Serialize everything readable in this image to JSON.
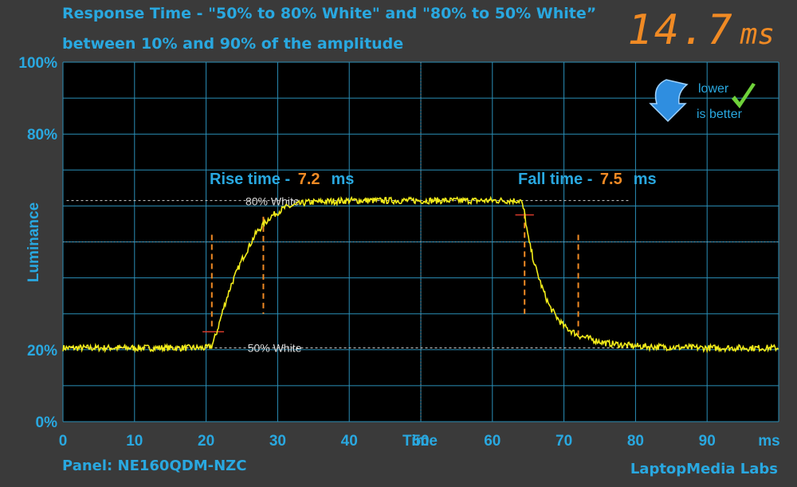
{
  "title_line1": "Response Time - \"50% to 80% White\" and \"80% to 50% White”",
  "title_line2": "between 10% and 90% of the amplitude",
  "readout": {
    "value": "14.7",
    "unit": "ms"
  },
  "badge": {
    "line1": "lower",
    "line2": "is better"
  },
  "panel_label": "Panel: NE160QDM-NZC",
  "brand": "LaptopMedia Labs",
  "chart_data": {
    "type": "line",
    "ylabel": "Luminance",
    "xlabel": "Time",
    "x_unit": "ms",
    "xlim": [
      0,
      100
    ],
    "ylim": [
      0,
      100
    ],
    "x_ticks": [
      0,
      10,
      20,
      30,
      40,
      50,
      60,
      70,
      80,
      90
    ],
    "y_tick_labels": [
      {
        "value": 100,
        "label": "100%"
      },
      {
        "value": 80,
        "label": "80%"
      },
      {
        "value": 20,
        "label": "20%"
      },
      {
        "value": 0,
        "label": "0%"
      }
    ],
    "grid": true,
    "reference_lines": [
      {
        "label": "80% White",
        "y": 61.5
      },
      {
        "label": "50% White",
        "y": 20.5
      }
    ],
    "rise": {
      "label": "Rise time - ",
      "value": "7.2",
      "unit": "ms",
      "start_ms": 20.8,
      "end_ms": 28.0
    },
    "fall": {
      "label": "Fall time - ",
      "value": "7.5",
      "unit": "ms",
      "start_ms": 64.5,
      "end_ms": 72.0
    },
    "series": [
      {
        "color": "#f2ec1a",
        "x": [
          0,
          20,
          20.8,
          21.5,
          22.5,
          23.5,
          25,
          27,
          29,
          31,
          34,
          40,
          50,
          60,
          64,
          64.5,
          65,
          66,
          67,
          68,
          69,
          70,
          72,
          74,
          76,
          80,
          85,
          90,
          100
        ],
        "y": [
          20.5,
          20.5,
          21,
          25,
          32,
          38,
          45,
          52.5,
          57,
          59.5,
          61,
          61.5,
          61.5,
          61.5,
          61.5,
          58,
          51,
          43,
          37,
          32,
          29,
          26.5,
          24,
          22.8,
          21.8,
          21,
          20.7,
          20.5,
          20.5
        ]
      }
    ]
  }
}
